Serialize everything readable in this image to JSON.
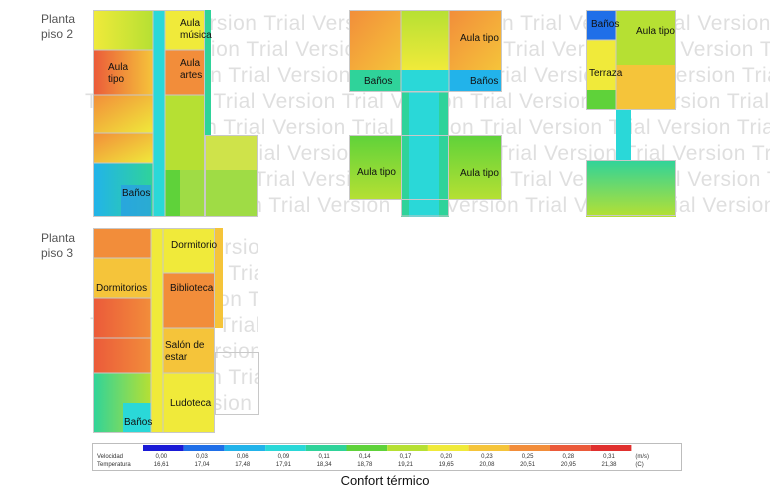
{
  "floors": [
    {
      "id": "floor2",
      "label_line1": "Planta",
      "label_line2": "piso 2"
    },
    {
      "id": "floor3",
      "label_line1": "Planta",
      "label_line2": "piso 3"
    }
  ],
  "rooms": {
    "aula_musica_1": "Aula",
    "aula_musica_2": "música",
    "aula_tipo_left_1": "Aula",
    "aula_tipo_left_2": "tipo",
    "aula_artes_1": "Aula",
    "aula_artes_2": "artes",
    "banos_left": "Baños",
    "aula_tipo_mid_top": "Aula tipo",
    "banos_mid_left": "Baños",
    "banos_mid_right": "Baños",
    "aula_tipo_mid_bl": "Aula tipo",
    "aula_tipo_mid_br": "Aula tipo",
    "banos_right": "Baños",
    "aula_tipo_right": "Aula tipo",
    "terraza": "Terraza",
    "dormitorio": "Dormitorio",
    "dormitorios": "Dormitorios",
    "biblioteca": "Biblioteca",
    "salon_1": "Salón de",
    "salon_2": "estar",
    "ludoteca": "Ludoteca",
    "banos_3": "Baños"
  },
  "watermark_text": "Trial Version Trial Version Trial Version Trial Version Trial Version Trial Version",
  "legend": {
    "velocity_label": "Velocidad",
    "temperature_label": "Temperatura",
    "velocity_unit": "(m/s)",
    "temperature_unit": "(C)",
    "velocities": [
      "0,00",
      "0,03",
      "0,06",
      "0,09",
      "0,11",
      "0,14",
      "0,17",
      "0,20",
      "0,23",
      "0,25",
      "0,28",
      "0,31"
    ],
    "temperatures": [
      "16,61",
      "17,04",
      "17,48",
      "17,91",
      "18,34",
      "18,78",
      "19,21",
      "19,65",
      "20,08",
      "20,51",
      "20,95",
      "21,38"
    ],
    "colors": [
      "#1a1ad6",
      "#1f6fe8",
      "#22b3ea",
      "#2ad8d8",
      "#2fd39a",
      "#5fd23a",
      "#b6e033",
      "#f0ea3a",
      "#f5c43a",
      "#f28d3a",
      "#eb5a3a",
      "#e0302e"
    ]
  },
  "caption": "Confort térmico"
}
